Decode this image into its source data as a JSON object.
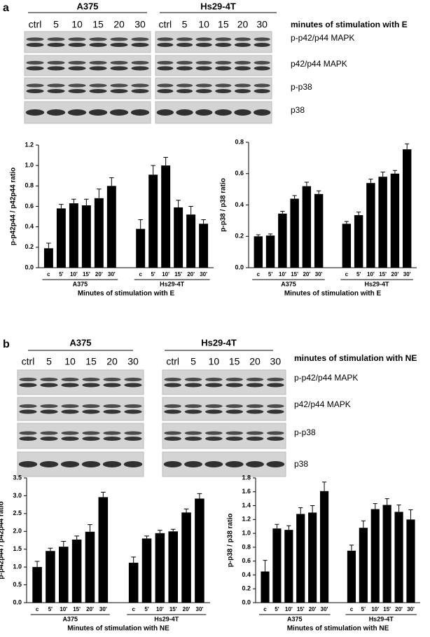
{
  "panels": [
    {
      "label": "a",
      "caption": "minutes of stimulation with E",
      "groups": [
        {
          "name": "A375",
          "lanes": [
            "ctrl",
            "5",
            "10",
            "15",
            "20",
            "30"
          ]
        },
        {
          "name": "Hs29-4T",
          "lanes": [
            "ctrl",
            "5",
            "10",
            "15",
            "20",
            "30"
          ]
        }
      ],
      "bands": [
        "p-p42/p44 MAPK",
        "p42/p44 MAPK",
        "p-p38",
        "p38"
      ]
    },
    {
      "label": "b",
      "caption": "minutes of stimulation with NE",
      "groups": [
        {
          "name": "A375",
          "lanes": [
            "ctrl",
            "5",
            "10",
            "15",
            "20",
            "30"
          ]
        },
        {
          "name": "Hs29-4T",
          "lanes": [
            "ctrl",
            "5",
            "10",
            "15",
            "20",
            "30"
          ]
        }
      ],
      "bands": [
        "p-p42/p44 MAPK",
        "p42/p44 MAPK",
        "p-p38",
        "p38"
      ]
    }
  ],
  "chart_data": [
    {
      "type": "bar",
      "ylabel": "p-p42p44 / p42p44 ratio",
      "xlabel": "Minutes of stimulation with E",
      "color": "#000000",
      "ylim": [
        0,
        1.2
      ],
      "yticks": [
        {
          "value": 0,
          "label": "0.0"
        },
        0.2,
        0.4,
        0.6,
        0.8,
        {
          "value": 1,
          "label": "1.0"
        },
        1.2
      ],
      "groups": [
        {
          "name": "A375",
          "categories": [
            "c",
            "5'",
            "10'",
            "15'",
            "20'",
            "30'"
          ],
          "values": [
            0.19,
            0.58,
            0.63,
            0.61,
            0.68,
            0.8
          ],
          "errors": [
            0.05,
            0.04,
            0.04,
            0.06,
            0.09,
            0.08
          ]
        },
        {
          "name": "Hs29-4T",
          "categories": [
            "c",
            "5'",
            "10'",
            "15'",
            "20'",
            "30'"
          ],
          "values": [
            0.38,
            0.91,
            1.0,
            0.59,
            0.52,
            0.43
          ],
          "errors": [
            0.09,
            0.09,
            0.08,
            0.07,
            0.08,
            0.04
          ]
        }
      ]
    },
    {
      "type": "bar",
      "ylabel": "p-p38 / p38 ratio",
      "xlabel": "Minutes of stimulation with E",
      "color": "#000000",
      "ylim": [
        0,
        0.8
      ],
      "yticks": [
        {
          "value": 0,
          "label": "0.0"
        },
        0.2,
        0.4,
        0.6,
        0.8
      ],
      "groups": [
        {
          "name": "A375",
          "categories": [
            "c",
            "5'",
            "10'",
            "15'",
            "20'",
            "30'"
          ],
          "values": [
            0.2,
            0.205,
            0.345,
            0.44,
            0.52,
            0.47
          ],
          "errors": [
            0.01,
            0.01,
            0.015,
            0.02,
            0.025,
            0.02
          ]
        },
        {
          "name": "Hs29-4T",
          "categories": [
            "c",
            "5'",
            "10'",
            "15'",
            "20'",
            "30'"
          ],
          "values": [
            0.28,
            0.335,
            0.54,
            0.58,
            0.6,
            0.755
          ],
          "errors": [
            0.015,
            0.02,
            0.025,
            0.03,
            0.02,
            0.035
          ]
        }
      ]
    },
    {
      "type": "bar",
      "ylabel": "p-p42p44 / p42p44 ratio",
      "xlabel": "Minutes of stimulation with NE",
      "color": "#000000",
      "ylim": [
        0,
        3.5
      ],
      "yticks": [
        {
          "value": 0,
          "label": "0.0"
        },
        0.5,
        {
          "value": 1,
          "label": "1.0"
        },
        1.5,
        {
          "value": 2,
          "label": "2.0"
        },
        2.5,
        {
          "value": 3,
          "label": "3.0"
        },
        3.5
      ],
      "groups": [
        {
          "name": "A375",
          "categories": [
            "c",
            "5'",
            "10'",
            "15'",
            "20'",
            "30'"
          ],
          "values": [
            1.0,
            1.45,
            1.57,
            1.77,
            1.99,
            2.96
          ],
          "errors": [
            0.16,
            0.08,
            0.15,
            0.1,
            0.2,
            0.14
          ]
        },
        {
          "name": "Hs29-4T",
          "categories": [
            "c",
            "5'",
            "10'",
            "15'",
            "20'",
            "30'"
          ],
          "values": [
            1.12,
            1.8,
            1.95,
            2.0,
            2.53,
            2.92
          ],
          "errors": [
            0.16,
            0.07,
            0.08,
            0.06,
            0.1,
            0.14
          ]
        }
      ]
    },
    {
      "type": "bar",
      "ylabel": "p-p38 / p38 ratio",
      "xlabel": "Minutes of stimulation with NE",
      "color": "#000000",
      "ylim": [
        0,
        1.8
      ],
      "yticks": [
        {
          "value": 0,
          "label": "0.0"
        },
        0.2,
        0.4,
        0.6,
        0.8,
        {
          "value": 1,
          "label": "1.0"
        },
        1.2,
        1.4,
        1.6,
        1.8
      ],
      "groups": [
        {
          "name": "A375",
          "categories": [
            "c",
            "5'",
            "10'",
            "15'",
            "20'",
            "30'"
          ],
          "values": [
            0.45,
            1.07,
            1.05,
            1.28,
            1.3,
            1.61
          ],
          "errors": [
            0.16,
            0.06,
            0.06,
            0.09,
            0.1,
            0.13
          ]
        },
        {
          "name": "Hs29-4T",
          "categories": [
            "c",
            "5'",
            "10'",
            "15'",
            "20'",
            "30'"
          ],
          "values": [
            0.75,
            1.08,
            1.35,
            1.41,
            1.31,
            1.2
          ],
          "errors": [
            0.08,
            0.1,
            0.08,
            0.09,
            0.1,
            0.14
          ]
        }
      ]
    }
  ]
}
